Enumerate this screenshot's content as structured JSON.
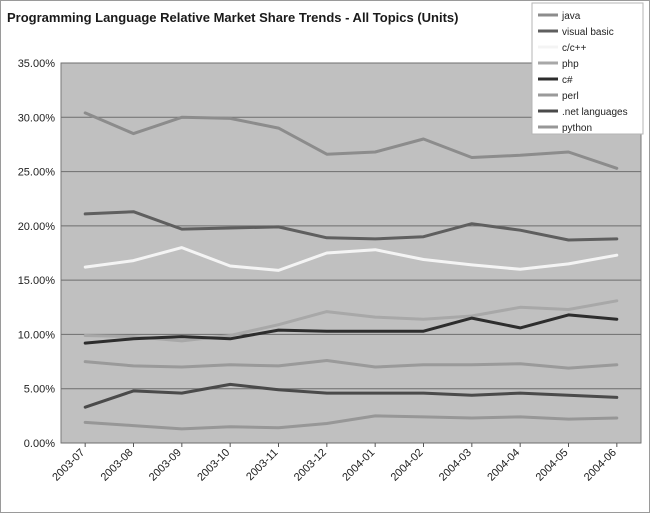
{
  "chart_data": {
    "type": "line",
    "title": "Programming Language Relative Market Share Trends - All Topics (Units)",
    "xlabel": "",
    "ylabel": "",
    "categories": [
      "2003-07",
      "2003-08",
      "2003-09",
      "2003-10",
      "2003-11",
      "2003-12",
      "2004-01",
      "2004-02",
      "2004-03",
      "2004-04",
      "2004-05",
      "2004-06"
    ],
    "y_tick_labels": [
      "0.00%",
      "5.00%",
      "10.00%",
      "15.00%",
      "20.00%",
      "25.00%",
      "30.00%",
      "35.00%"
    ],
    "ylim": [
      0,
      35
    ],
    "y_unit": "percent",
    "grid": true,
    "legend_position": "top-right",
    "plot_background": "#c0c0c0",
    "series": [
      {
        "name": "java",
        "color": "#8c8c8c",
        "values": [
          30.4,
          28.5,
          30.0,
          29.9,
          29.0,
          26.6,
          26.8,
          28.0,
          26.3,
          26.5,
          26.8,
          25.3
        ]
      },
      {
        "name": "visual basic",
        "color": "#5f5f5f",
        "values": [
          21.1,
          21.3,
          19.7,
          19.8,
          19.9,
          18.9,
          18.8,
          19.0,
          20.2,
          19.6,
          18.7,
          18.8
        ]
      },
      {
        "name": "c/c++",
        "color": "#f4f4f4",
        "values": [
          16.2,
          16.8,
          18.0,
          16.3,
          15.9,
          17.5,
          17.8,
          16.9,
          16.4,
          16.0,
          16.5,
          17.3
        ]
      },
      {
        "name": "php",
        "color": "#a8a8a8",
        "values": [
          9.9,
          9.8,
          9.4,
          9.9,
          10.9,
          12.1,
          11.6,
          11.4,
          11.7,
          12.5,
          12.3,
          13.1
        ]
      },
      {
        "name": "c#",
        "color": "#2d2d2d",
        "values": [
          9.2,
          9.6,
          9.8,
          9.6,
          10.4,
          10.3,
          10.3,
          10.3,
          11.5,
          10.6,
          11.8,
          11.4
        ]
      },
      {
        "name": "perl",
        "color": "#9a9a9a",
        "values": [
          7.5,
          7.1,
          7.0,
          7.2,
          7.1,
          7.6,
          7.0,
          7.2,
          7.2,
          7.3,
          6.9,
          7.2
        ]
      },
      {
        "name": ".net languages",
        "color": "#4a4a4a",
        "values": [
          3.3,
          4.8,
          4.6,
          5.4,
          4.9,
          4.6,
          4.6,
          4.6,
          4.4,
          4.6,
          4.4,
          4.2
        ]
      },
      {
        "name": "python",
        "color": "#979797",
        "values": [
          1.9,
          1.6,
          1.3,
          1.5,
          1.4,
          1.8,
          2.5,
          2.4,
          2.3,
          2.4,
          2.2,
          2.3
        ]
      }
    ]
  }
}
